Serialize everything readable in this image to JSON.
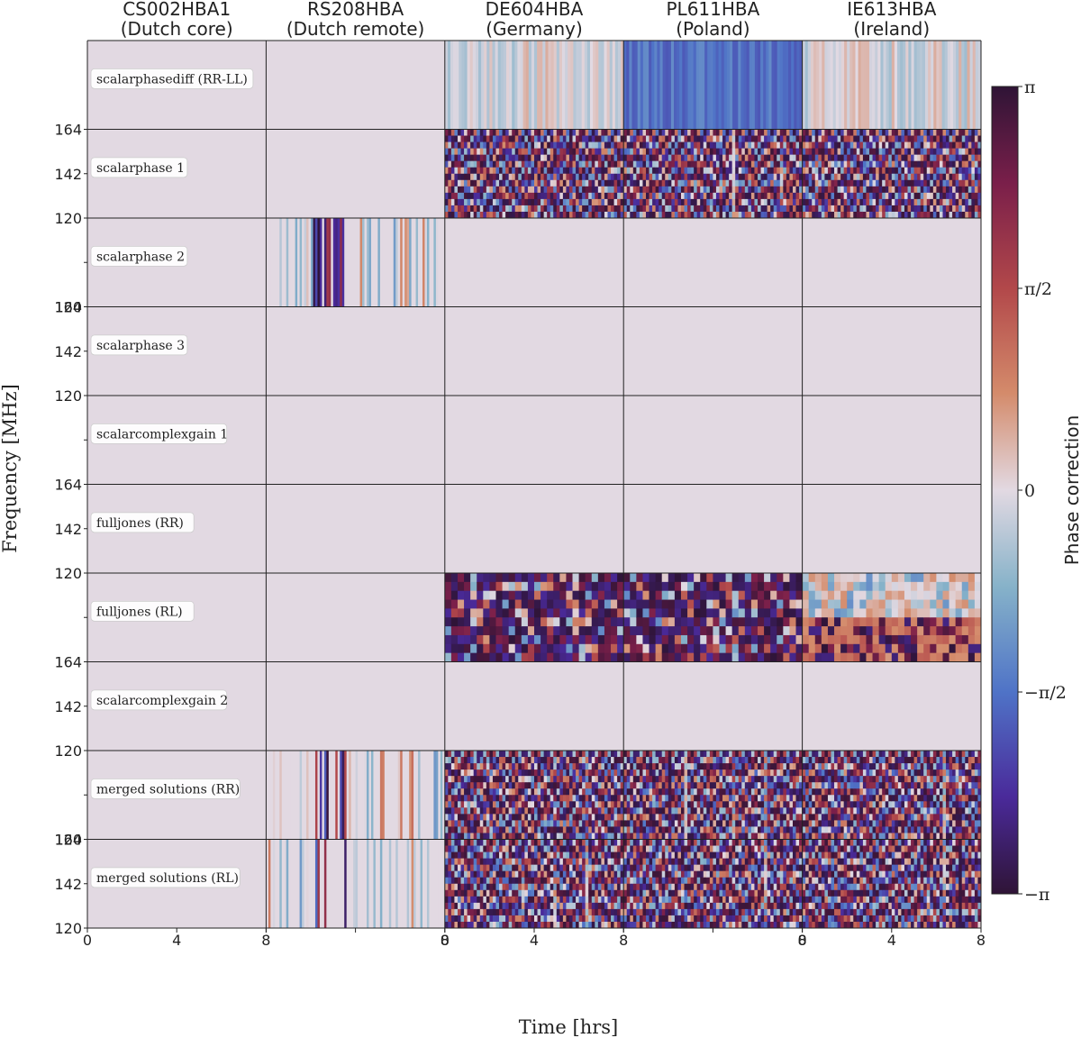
{
  "chart_data": {
    "type": "heatmap",
    "title": "",
    "xlabel": "Time [hrs]",
    "ylabel": "Frequency [MHz]",
    "colorbar_label": "Phase correction",
    "colorbar_ticks": [
      "π",
      "π/2",
      "0",
      "−π/2",
      "−π"
    ],
    "colorbar_range": [
      -3.14159,
      3.14159
    ],
    "stations": [
      {
        "name": "CS002HBA1",
        "region": "(Dutch core)"
      },
      {
        "name": "RS208HBA",
        "region": "(Dutch remote)"
      },
      {
        "name": "DE604HBA",
        "region": "(Germany)"
      },
      {
        "name": "PL611HBA",
        "region": "(Poland)"
      },
      {
        "name": "IE613HBA",
        "region": "(Ireland)"
      }
    ],
    "rows": [
      {
        "label": "scalarphasediff (RR-LL)",
        "patterns": [
          "flat",
          "flat",
          "diffmild",
          "diffstrong",
          "diffmild"
        ]
      },
      {
        "label": "scalarphase 1",
        "patterns": [
          "flat",
          "flat",
          "wrap",
          "wrap",
          "wrap"
        ]
      },
      {
        "label": "scalarphase 2",
        "patterns": [
          "flat",
          "stripes",
          "flat",
          "flat",
          "flat"
        ]
      },
      {
        "label": "scalarphase 3",
        "patterns": [
          "flat",
          "flat",
          "flat",
          "flat",
          "flat"
        ]
      },
      {
        "label": "scalarcomplexgain 1",
        "patterns": [
          "flat",
          "flat",
          "flat",
          "flat",
          "flat"
        ]
      },
      {
        "label": "fulljones (RR)",
        "patterns": [
          "flat",
          "flat",
          "flat",
          "flat",
          "flat"
        ]
      },
      {
        "label": "fulljones (RL)",
        "patterns": [
          "flat",
          "flat",
          "blocks",
          "blocks",
          "blocks"
        ]
      },
      {
        "label": "scalarcomplexgain 2",
        "patterns": [
          "flat",
          "flat",
          "flat",
          "flat",
          "flat"
        ]
      },
      {
        "label": "merged solutions (RR)",
        "patterns": [
          "flat",
          "stripes",
          "wrap",
          "wrap",
          "wrap"
        ]
      },
      {
        "label": "merged solutions (RL)",
        "patterns": [
          "flat",
          "stripes",
          "wrap",
          "wrap",
          "wrap"
        ]
      }
    ],
    "y_ticks": [
      "164",
      "142",
      "120"
    ],
    "x_ticks": [
      {
        "value": 0,
        "label": "0"
      },
      {
        "value": 4,
        "label": "4"
      },
      {
        "value": 8,
        "label": "8"
      }
    ],
    "x_range_hrs": [
      0,
      8
    ],
    "freq_range_mhz": [
      120,
      164
    ],
    "colors": {
      "neutral": "#e2d9e2",
      "positive_end": "#2f1436",
      "negative_end": "#2f1436",
      "grid_line": "#222222"
    }
  }
}
